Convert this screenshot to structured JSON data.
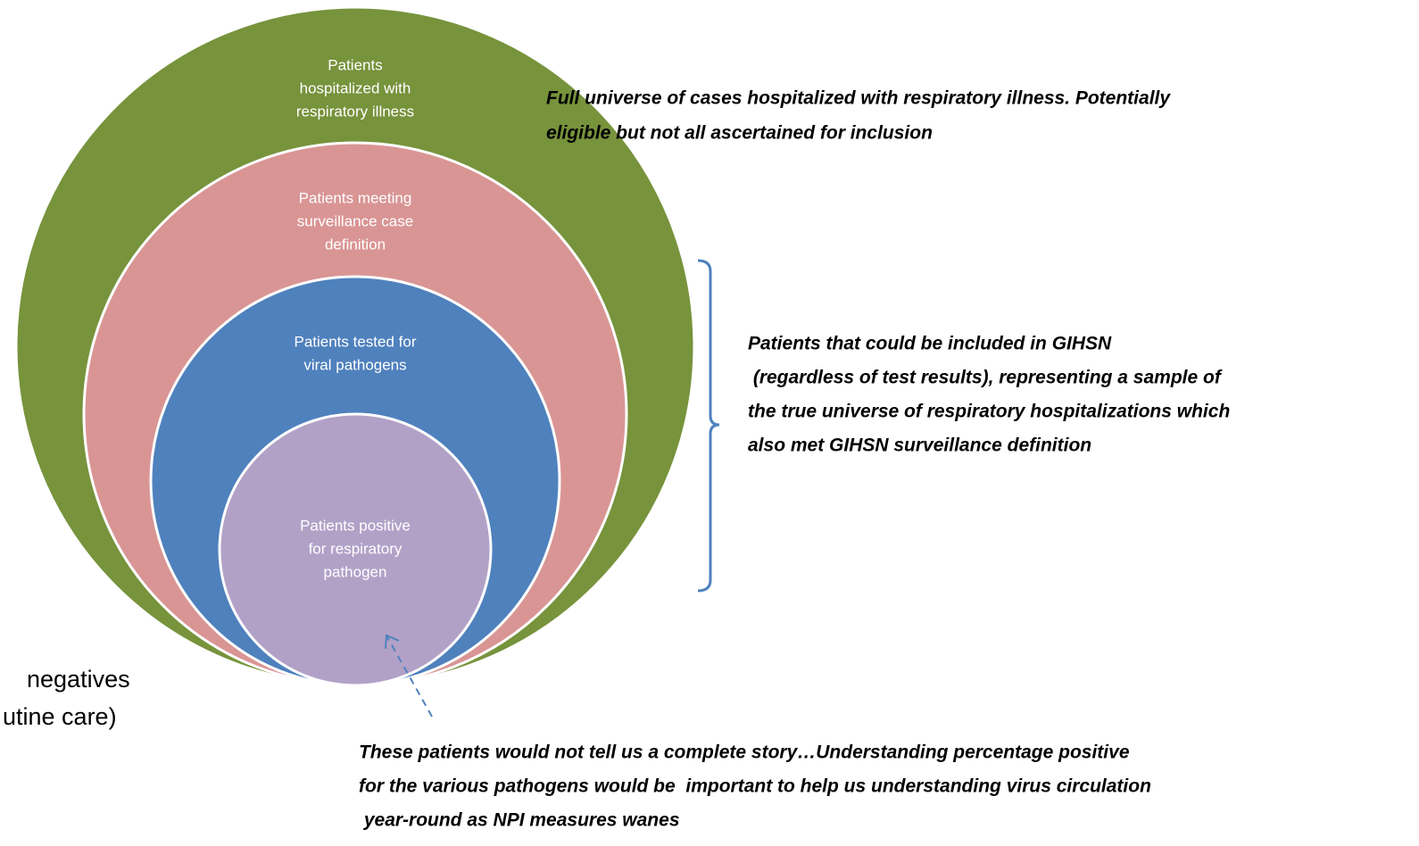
{
  "nodes": [
    {
      "label": [
        "Patients",
        "hospitalized with",
        "respiratory illness"
      ]
    },
    {
      "label": [
        "Patients meeting",
        "surveillance case",
        "definition"
      ]
    },
    {
      "label": [
        "Patients tested for",
        "viral pathogens"
      ]
    },
    {
      "label": [
        "Patients positive",
        "for respiratory",
        "pathogen"
      ]
    }
  ],
  "annotations": [
    {
      "lines": [
        "Full universe of cases hospitalized with respiratory illness. Potentially",
        "eligible but not all ascertained for inclusion"
      ]
    },
    {
      "lines": [
        "Patients that could be included in GIHSN",
        " (regardless of test results), representing a sample of",
        "the true universe of respiratory hospitalizations which",
        "also met GIHSN surveillance definition"
      ]
    },
    {
      "lines": [
        "These patients would not tell us a complete story…Understanding percentage positive",
        "for the various pathogens would be  important to help us understanding virus circulation",
        " year-round as NPI measures wanes"
      ]
    }
  ],
  "side_text": {
    "lines": [
      "negatives",
      "utine care)"
    ]
  }
}
